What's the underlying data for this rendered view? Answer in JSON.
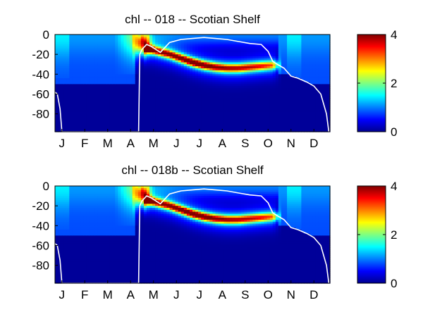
{
  "chart_data": [
    {
      "type": "heatmap",
      "title": "chl -- 018 -- Scotian Shelf",
      "xlabel": "",
      "ylabel": "",
      "x_tick_labels": [
        "J",
        "F",
        "M",
        "A",
        "M",
        "J",
        "J",
        "A",
        "S",
        "O",
        "N",
        "D"
      ],
      "y_ticks": [
        0,
        -20,
        -40,
        -60,
        -80
      ],
      "ylim": [
        -98,
        0
      ],
      "colorbar": {
        "ticks": [
          0,
          2,
          4
        ],
        "range": [
          0,
          4
        ],
        "colormap": "jet"
      },
      "annotations": "white line: mixed layer depth",
      "surface_bloom": {
        "month_range": [
          3.55,
          4.05
        ],
        "peak_value": 3.6,
        "depth": -10
      },
      "subsurface_max": {
        "month": [
          4.0,
          4.5,
          5.0,
          5.5,
          6.0,
          6.5,
          7.0,
          7.5,
          8.0,
          8.5,
          9.0,
          9.5
        ],
        "depth": [
          -14,
          -17,
          -20,
          -24,
          -28,
          -31,
          -33,
          -34,
          -34,
          -33,
          -32,
          -31
        ],
        "value": [
          3.2,
          3.1,
          3.2,
          3.4,
          3.7,
          3.5,
          3.2,
          3.0,
          2.9,
          2.8,
          2.6,
          2.2
        ]
      },
      "mixed_layer_depth": {
        "month": [
          0.0,
          0.1,
          0.22,
          0.3,
          3.65,
          3.7,
          3.8,
          4.0,
          4.2,
          4.6,
          5.0,
          5.5,
          6.0,
          6.5,
          7.0,
          7.5,
          8.0,
          8.5,
          9.0,
          9.3,
          9.5,
          9.7,
          10.0,
          10.3,
          10.6,
          11.0,
          11.3,
          11.6,
          11.85,
          11.95
        ],
        "depth": [
          -58,
          -60,
          -75,
          -98,
          -98,
          -20,
          -15,
          -10,
          -12,
          -18,
          -8,
          -5,
          -4,
          -3,
          -4,
          -5,
          -7,
          -9,
          -10,
          -17,
          -27,
          -30,
          -34,
          -42,
          -44,
          -48,
          -52,
          -60,
          -80,
          -98
        ]
      }
    },
    {
      "type": "heatmap",
      "title": "chl -- 018b -- Scotian Shelf",
      "xlabel": "",
      "ylabel": "",
      "x_tick_labels": [
        "J",
        "F",
        "M",
        "A",
        "M",
        "J",
        "J",
        "A",
        "S",
        "O",
        "N",
        "D"
      ],
      "y_ticks": [
        0,
        -20,
        -40,
        -60,
        -80
      ],
      "ylim": [
        -98,
        0
      ],
      "colorbar": {
        "ticks": [
          0,
          2,
          4
        ],
        "range": [
          0,
          4
        ],
        "colormap": "jet"
      },
      "annotations": "white line: mixed layer depth",
      "surface_bloom": {
        "month_range": [
          3.55,
          4.05
        ],
        "peak_value": 3.6,
        "depth": -10
      },
      "subsurface_max": {
        "month": [
          4.0,
          4.5,
          5.0,
          5.5,
          6.0,
          6.5,
          7.0,
          7.5,
          8.0,
          8.5,
          9.0,
          9.5
        ],
        "depth": [
          -14,
          -17,
          -20,
          -24,
          -28,
          -31,
          -33,
          -34,
          -34,
          -33,
          -32,
          -31
        ],
        "value": [
          3.2,
          3.1,
          3.2,
          3.4,
          3.7,
          3.5,
          3.2,
          3.0,
          2.9,
          2.8,
          2.6,
          2.2
        ]
      },
      "mixed_layer_depth": {
        "month": [
          0.0,
          0.1,
          0.22,
          0.3,
          3.65,
          3.7,
          3.8,
          4.0,
          4.2,
          4.6,
          5.0,
          5.5,
          6.0,
          6.5,
          7.0,
          7.5,
          8.0,
          8.5,
          9.0,
          9.3,
          9.5,
          9.7,
          10.0,
          10.3,
          10.6,
          11.0,
          11.3,
          11.6,
          11.85,
          11.95
        ],
        "depth": [
          -58,
          -60,
          -75,
          -98,
          -98,
          -20,
          -15,
          -10,
          -12,
          -18,
          -8,
          -5,
          -4,
          -3,
          -4,
          -5,
          -7,
          -9,
          -10,
          -17,
          -27,
          -30,
          -34,
          -42,
          -44,
          -48,
          -52,
          -60,
          -80,
          -98
        ]
      }
    }
  ]
}
